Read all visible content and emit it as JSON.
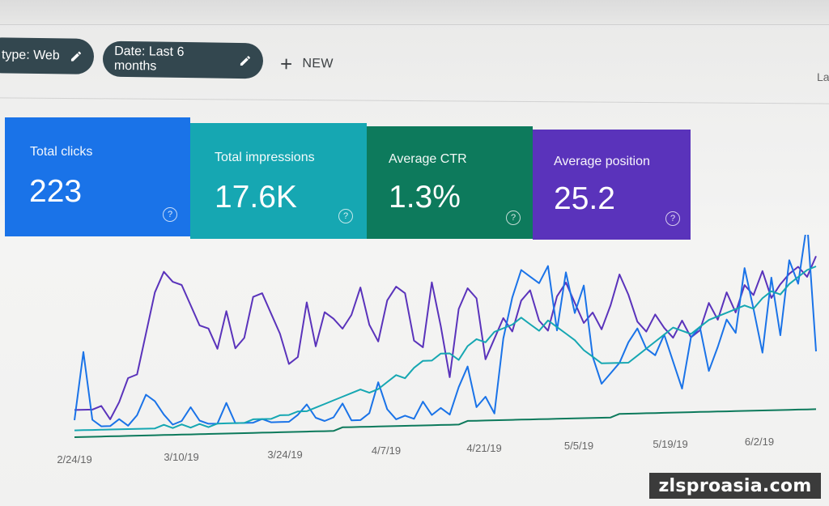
{
  "filters": {
    "type_chip": "type: Web",
    "date_chip": "Date: Last 6 months",
    "new_label": "NEW"
  },
  "corner_text": "La",
  "cards": [
    {
      "label": "Total clicks",
      "value": "223",
      "color": "#1a73e8"
    },
    {
      "label": "Total impressions",
      "value": "17.6K",
      "color": "#16a7b2"
    },
    {
      "label": "Average CTR",
      "value": "1.3%",
      "color": "#0d7a5c"
    },
    {
      "label": "Average position",
      "value": "25.2",
      "color": "#5a33bb"
    }
  ],
  "help_glyph": "?",
  "chart_data": {
    "type": "line",
    "x_tick_labels": [
      "2/24/19",
      "3/10/19",
      "3/24/19",
      "4/7/19",
      "4/21/19",
      "5/5/19",
      "5/19/19",
      "6/2/19"
    ],
    "grid": false,
    "series": [
      {
        "color": "#5a33bb",
        "values": [
          8,
          8,
          8,
          9,
          5,
          10,
          17,
          18,
          30,
          42,
          48,
          45,
          44,
          38,
          32,
          31,
          25,
          36,
          25,
          28,
          40,
          41,
          35,
          29,
          20,
          22,
          38,
          25,
          35,
          33,
          30,
          34,
          42,
          31,
          26,
          38,
          42,
          40,
          26,
          24,
          43,
          30,
          15,
          35,
          41,
          38,
          20,
          26,
          32,
          28,
          37,
          40,
          31,
          28,
          38,
          42,
          36,
          30,
          33,
          28,
          35,
          44,
          38,
          30,
          27,
          32,
          28,
          25,
          30,
          25,
          27,
          35,
          30,
          38,
          32,
          40,
          37,
          44,
          36,
          40,
          43,
          45,
          42,
          48
        ]
      },
      {
        "color": "#1a73e8",
        "values": [
          5,
          25,
          5,
          3,
          3,
          5,
          3,
          6,
          12,
          10,
          6,
          3,
          4,
          8,
          4,
          3,
          3,
          9,
          3,
          3,
          3,
          4,
          3,
          3,
          3,
          5,
          8,
          4,
          3,
          4,
          8,
          3,
          3,
          5,
          14,
          6,
          3,
          4,
          3,
          8,
          4,
          6,
          4,
          12,
          18,
          6,
          9,
          4,
          26,
          38,
          46,
          44,
          42,
          47,
          28,
          45,
          33,
          41,
          20,
          12,
          15,
          18,
          24,
          28,
          22,
          20,
          26,
          18,
          10,
          25,
          28,
          15,
          22,
          30,
          26,
          45,
          33,
          20,
          42,
          25,
          47,
          40,
          58,
          20
        ]
      },
      {
        "color": "#16a7b2",
        "values": [
          2,
          2,
          2,
          2,
          2,
          2,
          2,
          2,
          2,
          2,
          3,
          2,
          3,
          2,
          3,
          2,
          3,
          3,
          3,
          3,
          4,
          4,
          4,
          5,
          5,
          6,
          6,
          7,
          8,
          9,
          10,
          11,
          12,
          11,
          12,
          14,
          16,
          15,
          18,
          20,
          20,
          22,
          22,
          20,
          24,
          26,
          25,
          28,
          29,
          30,
          32,
          30,
          28,
          31,
          29,
          27,
          25,
          22,
          20,
          18,
          18,
          18,
          18,
          20,
          22,
          24,
          26,
          28,
          27,
          26,
          28,
          30,
          31,
          32,
          33,
          34,
          33,
          36,
          38,
          37,
          40,
          42,
          44,
          45
        ]
      },
      {
        "color": "#0d7a5c",
        "values": [
          0,
          0,
          0,
          0,
          0,
          0,
          0,
          0,
          0,
          0,
          0,
          0,
          0,
          0,
          0,
          0,
          0,
          0,
          0,
          0,
          0,
          0,
          0,
          0,
          0,
          0,
          0,
          0,
          0,
          0,
          1,
          1,
          1,
          1,
          1,
          1,
          1,
          1,
          1,
          1,
          1,
          1,
          1,
          1,
          2,
          2,
          2,
          2,
          2,
          2,
          2,
          2,
          2,
          2,
          2,
          2,
          2,
          2,
          2,
          2,
          2,
          3,
          3,
          3,
          3,
          3,
          3,
          3,
          3,
          3,
          3,
          3,
          3,
          3,
          3,
          3,
          3,
          3,
          3,
          3,
          3,
          3,
          3,
          3
        ]
      }
    ]
  }
}
